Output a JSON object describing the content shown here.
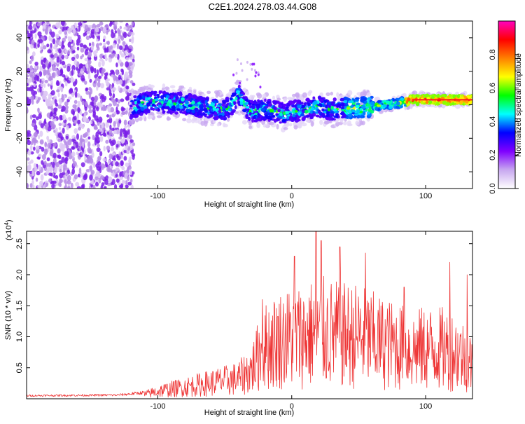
{
  "title": "C2E1.2024.278.03.44.G08",
  "chart_data": [
    {
      "type": "heatmap",
      "title": "C2E1.2024.278.03.44.G08",
      "xlabel": "Height of straight line (km)",
      "ylabel": "Frequency (Hz)",
      "xlim": [
        -198,
        135
      ],
      "ylim": [
        -50,
        50
      ],
      "xticks": [
        -100,
        0,
        100
      ],
      "xtick_labels": [
        "-100",
        "0",
        "100"
      ],
      "yticks": [
        -40,
        -20,
        0,
        20,
        40
      ],
      "ytick_labels": [
        "-40",
        "-20",
        "0",
        "20",
        "40"
      ],
      "grid": false,
      "noise_region_end_km": -118,
      "ridge": {
        "x": [
          -120,
          -110,
          -100,
          -90,
          -80,
          -70,
          -60,
          -50,
          -45,
          -40,
          -35,
          -30,
          -20,
          -10,
          -5,
          0,
          10,
          20,
          30,
          40,
          50,
          60,
          70,
          80,
          90,
          100,
          110,
          120,
          135
        ],
        "y": [
          -2,
          1,
          2,
          1,
          1,
          -1,
          -2,
          -3,
          0,
          6,
          -1,
          -4,
          -3,
          -4,
          -6,
          -4,
          -3,
          -1,
          -3,
          -2,
          -2,
          -1,
          0,
          1,
          3,
          3,
          3,
          3,
          3
        ]
      },
      "colorbar": {
        "label": "Normalized spectral amplitude",
        "range": [
          0,
          1
        ],
        "ticks": [
          0.0,
          0.2,
          0.4,
          0.6,
          0.8
        ],
        "tick_labels": [
          "0.0",
          "0.2",
          "0.4",
          "0.6",
          "0.8"
        ],
        "colors": [
          "#ffffff",
          "#c8a8f0",
          "#8000ff",
          "#0000ff",
          "#00ffff",
          "#00ff00",
          "#ffff00",
          "#ff8000",
          "#ff0000",
          "#ff00c0"
        ]
      }
    },
    {
      "type": "line",
      "xlabel": "Height of straight line (km)",
      "ylabel": "SNR (10 * v/v)",
      "y_multiplier": "(x10",
      "y_multiplier_exp": "4",
      "y_multiplier_close": ")",
      "xlim": [
        -198,
        135
      ],
      "ylim": [
        0,
        2.7
      ],
      "xticks": [
        -100,
        0,
        100
      ],
      "xtick_labels": [
        "-100",
        "0",
        "100"
      ],
      "yticks": [
        0.5,
        1.0,
        1.5,
        2.0,
        2.5
      ],
      "ytick_labels": [
        "0.5",
        "1.0",
        "1.5",
        "2.0",
        "2.5"
      ],
      "grid": false,
      "series": [
        {
          "name": "SNR",
          "color": "#ee3333",
          "envelope_x": [
            -198,
            -130,
            -110,
            -100,
            -80,
            -60,
            -40,
            -30,
            -22,
            -10,
            0,
            10,
            20,
            30,
            40,
            50,
            60,
            70,
            80,
            90,
            100,
            110,
            120,
            130,
            135
          ],
          "envelope_y": [
            0.05,
            0.06,
            0.1,
            0.18,
            0.28,
            0.38,
            0.48,
            0.7,
            1.2,
            1.4,
            1.45,
            1.5,
            1.6,
            1.55,
            1.5,
            1.5,
            1.4,
            1.3,
            1.25,
            1.15,
            1.2,
            1.2,
            1.15,
            1.0,
            0.8
          ],
          "peaks": [
            {
              "x": -22,
              "y": 1.6
            },
            {
              "x": 2,
              "y": 2.3
            },
            {
              "x": 18,
              "y": 2.7
            },
            {
              "x": 22,
              "y": 2.55
            },
            {
              "x": 36,
              "y": 2.45
            },
            {
              "x": 55,
              "y": 2.35
            },
            {
              "x": 84,
              "y": 1.8
            },
            {
              "x": 118,
              "y": 2.2
            },
            {
              "x": 131,
              "y": 2.0
            }
          ]
        }
      ]
    }
  ]
}
